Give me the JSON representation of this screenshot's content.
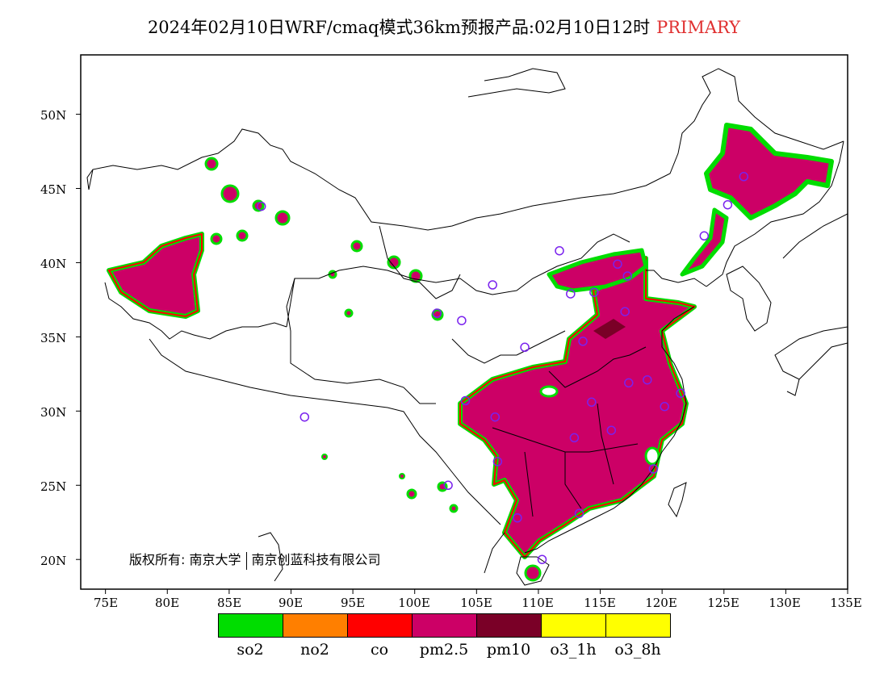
{
  "title": "2024年02月10日WRF/cmaq模式36km预报产品:02月10日12时",
  "title_tag": "PRIMARY",
  "title_tag_color": "#e03030",
  "latitude_labels": [
    "50N",
    "45N",
    "40N",
    "35N",
    "30N",
    "25N",
    "20N"
  ],
  "longitude_labels": [
    "75E",
    "80E",
    "85E",
    "90E",
    "95E",
    "100E",
    "105E",
    "110E",
    "115E",
    "120E",
    "125E",
    "130E",
    "135E"
  ],
  "copyright": {
    "label": "版权所有:",
    "org1": "南京大学",
    "org2": "南京创蓝科技有限公司"
  },
  "legend": [
    {
      "label": "so2",
      "color": "#00dd00"
    },
    {
      "label": "no2",
      "color": "#ff7f00"
    },
    {
      "label": "co",
      "color": "#ff0000"
    },
    {
      "label": "pm2.5",
      "color": "#cc0066"
    },
    {
      "label": "pm10",
      "color": "#7a0027"
    },
    {
      "label": "o3_1h",
      "color": "#ffff00"
    },
    {
      "label": "o3_8h",
      "color": "#ffff00"
    }
  ],
  "map": {
    "lon_range": [
      73,
      135
    ],
    "lat_range": [
      18,
      54
    ],
    "stations": [
      [
        87.6,
        43.8
      ],
      [
        101.8,
        36.6
      ],
      [
        103.8,
        36.1
      ],
      [
        106.3,
        38.5
      ],
      [
        111.7,
        40.8
      ],
      [
        112.6,
        37.9
      ],
      [
        108.9,
        34.3
      ],
      [
        113.6,
        34.7
      ],
      [
        117.0,
        36.7
      ],
      [
        117.2,
        39.1
      ],
      [
        116.4,
        39.9
      ],
      [
        114.5,
        38.0
      ],
      [
        104.1,
        30.7
      ],
      [
        106.5,
        29.6
      ],
      [
        106.7,
        26.6
      ],
      [
        102.7,
        25.0
      ],
      [
        108.3,
        22.8
      ],
      [
        113.3,
        23.1
      ],
      [
        110.3,
        20.0
      ],
      [
        112.9,
        28.2
      ],
      [
        115.9,
        28.7
      ],
      [
        114.3,
        30.6
      ],
      [
        117.3,
        31.9
      ],
      [
        118.8,
        32.1
      ],
      [
        120.2,
        30.3
      ],
      [
        121.5,
        31.2
      ],
      [
        119.3,
        26.1
      ],
      [
        123.4,
        41.8
      ],
      [
        125.3,
        43.9
      ],
      [
        126.6,
        45.8
      ],
      [
        91.1,
        29.6
      ]
    ]
  }
}
